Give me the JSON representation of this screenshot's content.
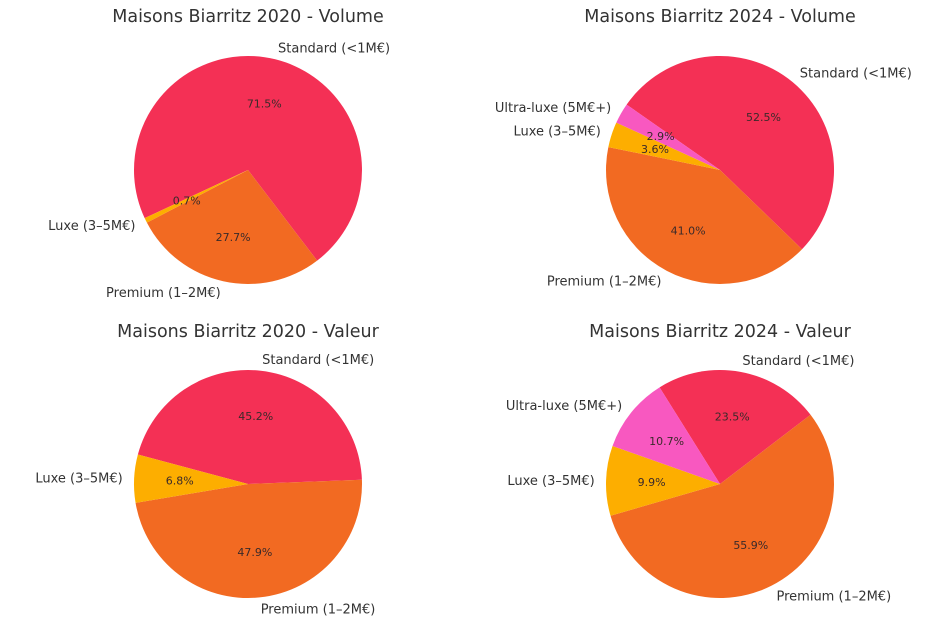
{
  "colors": {
    "Standard (<1M€)": "#f43055",
    "Premium (1–2M€)": "#f26a22",
    "Luxe (3–5M€)": "#fdae00",
    "Ultra-luxe (5M€+)": "#f858c0"
  },
  "chart_data": [
    {
      "type": "pie",
      "title": "Maisons Biarritz 2020 - Volume",
      "categories": [
        "Standard (<1M€)",
        "Premium (1–2M€)",
        "Luxe (3–5M€)"
      ],
      "values": [
        71.5,
        27.7,
        0.7
      ],
      "value_labels": [
        "71.5%",
        "27.7%",
        "0.7%"
      ]
    },
    {
      "type": "pie",
      "title": "Maisons Biarritz 2024 - Volume",
      "categories": [
        "Standard (<1M€)",
        "Premium (1–2M€)",
        "Luxe (3–5M€)",
        "Ultra-luxe (5M€+)"
      ],
      "values": [
        52.5,
        41.0,
        3.6,
        2.9
      ],
      "value_labels": [
        "52.5%",
        "41.0%",
        "3.6%",
        "2.9%"
      ]
    },
    {
      "type": "pie",
      "title": "Maisons Biarritz 2020 - Valeur",
      "categories": [
        "Standard (<1M€)",
        "Premium (1–2M€)",
        "Luxe (3–5M€)"
      ],
      "values": [
        45.2,
        47.9,
        6.8
      ],
      "value_labels": [
        "45.2%",
        "47.9%",
        "6.8%"
      ]
    },
    {
      "type": "pie",
      "title": "Maisons Biarritz 2024 - Valeur",
      "categories": [
        "Standard (<1M€)",
        "Premium (1–2M€)",
        "Luxe (3–5M€)",
        "Ultra-luxe (5M€+)"
      ],
      "values": [
        23.5,
        55.9,
        9.9,
        10.7
      ],
      "value_labels": [
        "23.5%",
        "55.9%",
        "9.9%",
        "10.7%"
      ]
    }
  ]
}
